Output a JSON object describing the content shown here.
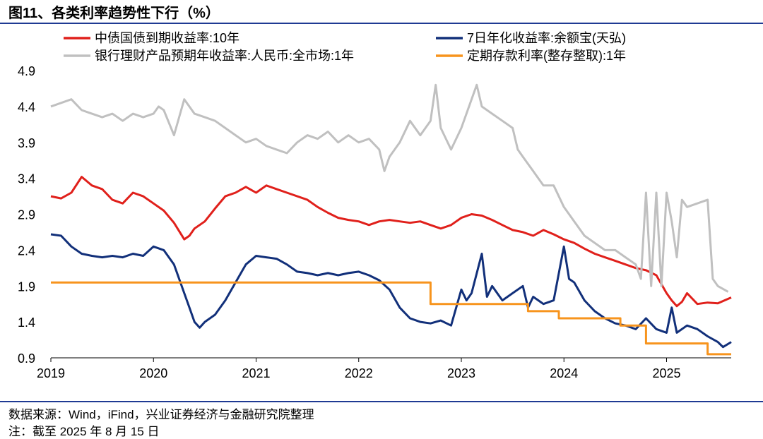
{
  "figure": {
    "title": "图11、各类利率趋势性下行（%）",
    "source": "数据来源：Wind，iFind，兴业证券经济与金融研究院整理",
    "note": "注：截至 2025 年 8 月 15 日"
  },
  "chart_data": {
    "type": "line",
    "xlabel": "",
    "ylabel": "",
    "xlim": [
      2019.0,
      2025.63
    ],
    "ylim": [
      0.9,
      4.9
    ],
    "x_ticks": [
      "2019",
      "2020",
      "2021",
      "2022",
      "2023",
      "2024",
      "2025"
    ],
    "y_ticks": [
      "0.9",
      "1.4",
      "1.9",
      "2.4",
      "2.9",
      "3.4",
      "3.9",
      "4.4",
      "4.9"
    ],
    "grid": false,
    "legend_position": "top",
    "series": [
      {
        "name": "中债国债到期收益率:10年",
        "color": "#e0201b",
        "x": [
          2019.0,
          2019.1,
          2019.2,
          2019.3,
          2019.4,
          2019.5,
          2019.6,
          2019.7,
          2019.8,
          2019.9,
          2020.0,
          2020.1,
          2020.2,
          2020.3,
          2020.35,
          2020.4,
          2020.5,
          2020.6,
          2020.7,
          2020.8,
          2020.9,
          2021.0,
          2021.1,
          2021.2,
          2021.3,
          2021.5,
          2021.6,
          2021.7,
          2021.8,
          2021.9,
          2022.0,
          2022.1,
          2022.2,
          2022.3,
          2022.4,
          2022.5,
          2022.6,
          2022.7,
          2022.8,
          2022.9,
          2023.0,
          2023.1,
          2023.2,
          2023.3,
          2023.4,
          2023.5,
          2023.6,
          2023.7,
          2023.8,
          2023.9,
          2024.0,
          2024.1,
          2024.2,
          2024.3,
          2024.4,
          2024.5,
          2024.6,
          2024.7,
          2024.8,
          2024.9,
          2025.0,
          2025.05,
          2025.1,
          2025.15,
          2025.2,
          2025.3,
          2025.4,
          2025.5,
          2025.63
        ],
        "y": [
          3.15,
          3.12,
          3.2,
          3.42,
          3.3,
          3.25,
          3.1,
          3.05,
          3.2,
          3.15,
          3.05,
          2.95,
          2.78,
          2.55,
          2.6,
          2.7,
          2.8,
          2.98,
          3.15,
          3.2,
          3.28,
          3.2,
          3.3,
          3.25,
          3.2,
          3.1,
          3.0,
          2.92,
          2.85,
          2.82,
          2.8,
          2.75,
          2.8,
          2.82,
          2.8,
          2.78,
          2.8,
          2.75,
          2.7,
          2.75,
          2.85,
          2.9,
          2.88,
          2.82,
          2.75,
          2.68,
          2.65,
          2.6,
          2.68,
          2.62,
          2.55,
          2.5,
          2.42,
          2.35,
          2.3,
          2.25,
          2.2,
          2.15,
          2.12,
          2.05,
          1.8,
          1.7,
          1.62,
          1.68,
          1.8,
          1.65,
          1.67,
          1.66,
          1.74
        ]
      },
      {
        "name": "7日年化收益率:余额宝(天弘)",
        "color": "#12307a",
        "x": [
          2019.0,
          2019.1,
          2019.2,
          2019.3,
          2019.4,
          2019.5,
          2019.6,
          2019.7,
          2019.8,
          2019.9,
          2020.0,
          2020.1,
          2020.2,
          2020.3,
          2020.35,
          2020.4,
          2020.45,
          2020.5,
          2020.6,
          2020.7,
          2020.8,
          2020.9,
          2021.0,
          2021.1,
          2021.2,
          2021.3,
          2021.4,
          2021.5,
          2021.6,
          2021.7,
          2021.8,
          2021.9,
          2022.0,
          2022.1,
          2022.2,
          2022.3,
          2022.4,
          2022.5,
          2022.6,
          2022.7,
          2022.8,
          2022.9,
          2023.0,
          2023.05,
          2023.1,
          2023.2,
          2023.25,
          2023.3,
          2023.4,
          2023.5,
          2023.6,
          2023.65,
          2023.7,
          2023.8,
          2023.9,
          2024.0,
          2024.05,
          2024.1,
          2024.2,
          2024.3,
          2024.4,
          2024.5,
          2024.6,
          2024.7,
          2024.8,
          2024.9,
          2025.0,
          2025.05,
          2025.1,
          2025.2,
          2025.3,
          2025.4,
          2025.5,
          2025.55,
          2025.63
        ],
        "y": [
          2.62,
          2.6,
          2.45,
          2.35,
          2.32,
          2.3,
          2.32,
          2.3,
          2.35,
          2.32,
          2.45,
          2.4,
          2.2,
          1.8,
          1.6,
          1.4,
          1.32,
          1.4,
          1.5,
          1.7,
          1.95,
          2.2,
          2.32,
          2.3,
          2.28,
          2.2,
          2.1,
          2.08,
          2.05,
          2.08,
          2.05,
          2.08,
          2.1,
          2.05,
          1.98,
          1.85,
          1.6,
          1.45,
          1.4,
          1.38,
          1.42,
          1.35,
          1.85,
          1.7,
          1.8,
          2.35,
          1.75,
          1.9,
          1.7,
          1.8,
          1.9,
          1.6,
          1.75,
          1.65,
          1.7,
          2.45,
          2.0,
          1.95,
          1.7,
          1.55,
          1.45,
          1.38,
          1.35,
          1.3,
          1.45,
          1.3,
          1.25,
          1.6,
          1.25,
          1.35,
          1.3,
          1.2,
          1.12,
          1.05,
          1.12
        ]
      },
      {
        "name": "银行理财产品预期年收益率:人民币:全市场:1年",
        "color": "#c0c0c0",
        "x": [
          2019.0,
          2019.1,
          2019.2,
          2019.3,
          2019.4,
          2019.5,
          2019.6,
          2019.7,
          2019.8,
          2019.9,
          2020.0,
          2020.05,
          2020.1,
          2020.2,
          2020.3,
          2020.4,
          2020.5,
          2020.6,
          2020.7,
          2020.8,
          2020.9,
          2021.0,
          2021.1,
          2021.2,
          2021.3,
          2021.4,
          2021.5,
          2021.6,
          2021.7,
          2021.8,
          2021.9,
          2022.0,
          2022.1,
          2022.2,
          2022.25,
          2022.3,
          2022.4,
          2022.5,
          2022.6,
          2022.7,
          2022.75,
          2022.8,
          2022.9,
          2023.0,
          2023.1,
          2023.15,
          2023.2,
          2023.3,
          2023.4,
          2023.5,
          2023.55,
          2023.6,
          2023.7,
          2023.8,
          2023.9,
          2024.0,
          2024.1,
          2024.2,
          2024.3,
          2024.4,
          2024.5,
          2024.6,
          2024.7,
          2024.75,
          2024.8,
          2024.85,
          2024.9,
          2024.95,
          2025.0,
          2025.05,
          2025.1,
          2025.15,
          2025.2,
          2025.3,
          2025.4,
          2025.45,
          2025.5,
          2025.6
        ],
        "y": [
          4.4,
          4.45,
          4.5,
          4.35,
          4.3,
          4.25,
          4.3,
          4.2,
          4.3,
          4.25,
          4.3,
          4.4,
          4.35,
          4.0,
          4.5,
          4.3,
          4.25,
          4.2,
          4.1,
          4.0,
          3.9,
          3.95,
          3.85,
          3.8,
          3.75,
          3.9,
          4.0,
          3.95,
          4.05,
          3.9,
          4.0,
          3.9,
          3.95,
          3.8,
          3.5,
          3.7,
          3.9,
          4.2,
          4.0,
          4.2,
          4.7,
          4.1,
          3.8,
          4.1,
          4.5,
          4.7,
          4.4,
          4.3,
          4.2,
          4.1,
          3.8,
          3.7,
          3.5,
          3.3,
          3.3,
          3.0,
          2.8,
          2.6,
          2.5,
          2.4,
          2.4,
          2.3,
          2.2,
          2.0,
          3.2,
          1.9,
          3.2,
          1.9,
          3.2,
          2.8,
          2.3,
          3.1,
          3.0,
          3.05,
          3.1,
          2.0,
          1.9,
          1.82
        ]
      },
      {
        "name": "定期存款利率(整存整取):1年",
        "color": "#f7941d",
        "step": true,
        "x": [
          2019.0,
          2022.7,
          2023.65,
          2023.95,
          2024.55,
          2024.8,
          2025.4,
          2025.63
        ],
        "y": [
          1.95,
          1.65,
          1.55,
          1.45,
          1.35,
          1.1,
          0.95,
          0.95
        ]
      }
    ]
  }
}
